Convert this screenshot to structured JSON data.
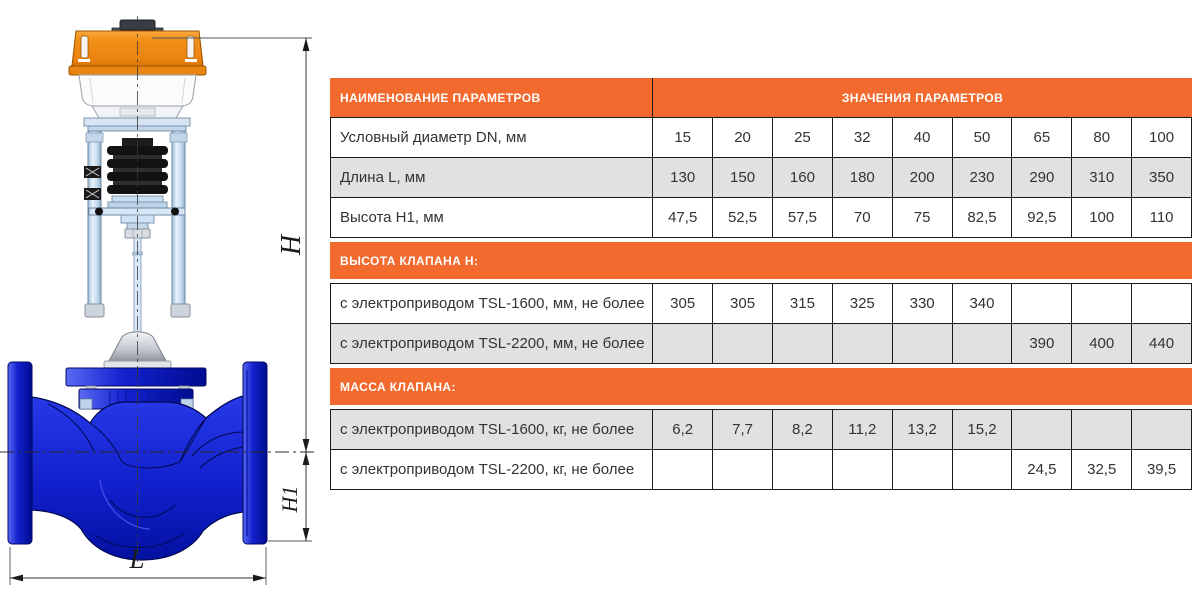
{
  "colors": {
    "accent_orange": "#f26a2e",
    "row_gray": "#e1e1e1",
    "grid_line": "#1a1a1a",
    "actuator_orange": "#ef8a17",
    "valve_blue": "#1626d2",
    "yoke_light_blue": "#c7dcef"
  },
  "drawing": {
    "labels": {
      "h": "H",
      "h1": "H1",
      "l": "L"
    }
  },
  "table": {
    "header": {
      "col1": "НАИМЕНОВАНИЕ ПАРАМЕТРОВ",
      "col2": "ЗНАЧЕНИЯ ПАРАМЕТРОВ"
    },
    "rows": [
      {
        "type": "data",
        "shade": "white",
        "label": "Условный диаметр DN, мм",
        "values": [
          "15",
          "20",
          "25",
          "32",
          "40",
          "50",
          "65",
          "80",
          "100"
        ]
      },
      {
        "type": "data",
        "shade": "gray",
        "label": "Длина L, мм",
        "values": [
          "130",
          "150",
          "160",
          "180",
          "200",
          "230",
          "290",
          "310",
          "350"
        ]
      },
      {
        "type": "data",
        "shade": "white",
        "label": "Высота H1, мм",
        "values": [
          "47,5",
          "52,5",
          "57,5",
          "70",
          "75",
          "82,5",
          "92,5",
          "100",
          "110"
        ]
      },
      {
        "type": "section",
        "label": "ВЫСОТА КЛАПАНА H:"
      },
      {
        "type": "data",
        "shade": "white",
        "label": "с электроприводом TSL-1600, мм, не более",
        "values": [
          "305",
          "305",
          "315",
          "325",
          "330",
          "340",
          "",
          "",
          ""
        ]
      },
      {
        "type": "data",
        "shade": "gray",
        "label": "с электроприводом TSL-2200, мм, не более",
        "values": [
          "",
          "",
          "",
          "",
          "",
          "",
          "390",
          "400",
          "440"
        ]
      },
      {
        "type": "section",
        "label": "МАССА КЛАПАНА:"
      },
      {
        "type": "data",
        "shade": "gray",
        "label": "с электроприводом TSL-1600, кг, не более",
        "values": [
          "6,2",
          "7,7",
          "8,2",
          "11,2",
          "13,2",
          "15,2",
          "",
          "",
          ""
        ]
      },
      {
        "type": "data",
        "shade": "white",
        "label": "с электроприводом TSL-2200, кг, не более",
        "values": [
          "",
          "",
          "",
          "",
          "",
          "",
          "24,5",
          "32,5",
          "39,5"
        ]
      }
    ]
  }
}
